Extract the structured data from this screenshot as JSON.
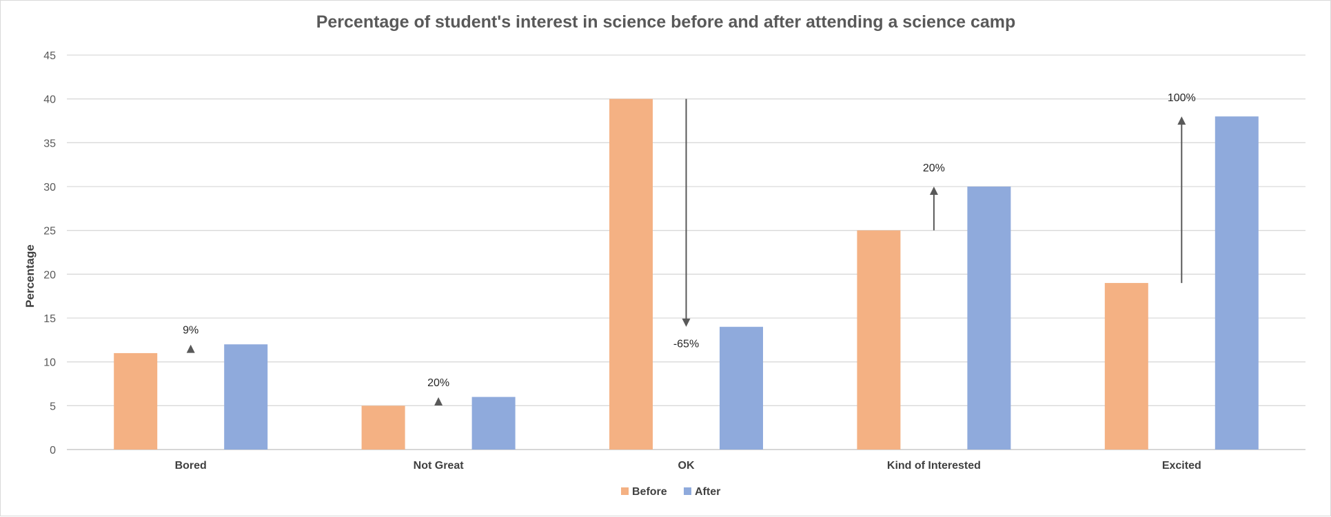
{
  "chart_data": {
    "type": "bar",
    "title": "Percentage of student's interest in science before and after attending a science camp",
    "xlabel": "",
    "ylabel": "Percentage",
    "ylim": [
      0,
      45
    ],
    "yticks": [
      0,
      5,
      10,
      15,
      20,
      25,
      30,
      35,
      40,
      45
    ],
    "grid": true,
    "legend_position": "bottom",
    "categories": [
      "Bored",
      "Not Great",
      "OK",
      "Kind of Interested",
      "Excited"
    ],
    "series": [
      {
        "name": "Before",
        "color": "#f4b183",
        "values": [
          11,
          5,
          40,
          25,
          19
        ]
      },
      {
        "name": "After",
        "color": "#8faadc",
        "values": [
          12,
          6,
          14,
          30,
          38
        ]
      }
    ],
    "annotations": [
      {
        "category": "Bored",
        "label": "9%",
        "from": 11,
        "to": 12
      },
      {
        "category": "Not Great",
        "label": "20%",
        "from": 5,
        "to": 6
      },
      {
        "category": "OK",
        "label": "-65%",
        "from": 40,
        "to": 14
      },
      {
        "category": "Kind of Interested",
        "label": "20%",
        "from": 25,
        "to": 30
      },
      {
        "category": "Excited",
        "label": "100%",
        "from": 19,
        "to": 38
      }
    ],
    "annotation_color": "#595959"
  }
}
